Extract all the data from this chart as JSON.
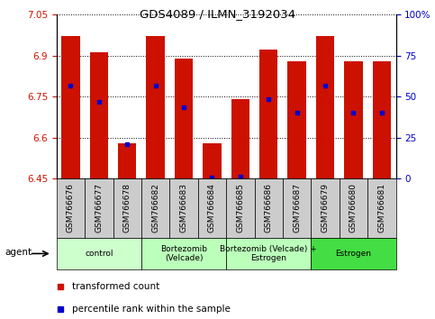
{
  "title": "GDS4089 / ILMN_3192034",
  "samples": [
    "GSM766676",
    "GSM766677",
    "GSM766678",
    "GSM766682",
    "GSM766683",
    "GSM766684",
    "GSM766685",
    "GSM766686",
    "GSM766687",
    "GSM766679",
    "GSM766680",
    "GSM766681"
  ],
  "bar_tops": [
    6.97,
    6.91,
    6.58,
    6.97,
    6.89,
    6.58,
    6.74,
    6.92,
    6.88,
    6.97,
    6.88,
    6.88
  ],
  "bar_bottoms": [
    6.45,
    6.45,
    6.45,
    6.45,
    6.45,
    6.45,
    6.45,
    6.45,
    6.45,
    6.45,
    6.45,
    6.45
  ],
  "percentile_values": [
    6.79,
    6.73,
    6.575,
    6.79,
    6.71,
    6.455,
    6.458,
    6.74,
    6.69,
    6.79,
    6.69,
    6.69
  ],
  "bar_color": "#CC1100",
  "dot_color": "#0000CC",
  "ylim": [
    6.45,
    7.05
  ],
  "yticks_left": [
    6.45,
    6.6,
    6.75,
    6.9,
    7.05
  ],
  "yticks_right": [
    0,
    25,
    50,
    75,
    100
  ],
  "groups": [
    {
      "label": "control",
      "start": 0,
      "end": 3,
      "color": "#CCFFCC"
    },
    {
      "label": "Bortezomib\n(Velcade)",
      "start": 3,
      "end": 6,
      "color": "#BBFFBB"
    },
    {
      "label": "Bortezomib (Velcade) +\nEstrogen",
      "start": 6,
      "end": 9,
      "color": "#BBFFBB"
    },
    {
      "label": "Estrogen",
      "start": 9,
      "end": 12,
      "color": "#44DD44"
    }
  ],
  "legend_items": [
    {
      "label": "transformed count",
      "color": "#CC1100"
    },
    {
      "label": "percentile rank within the sample",
      "color": "#0000CC"
    }
  ],
  "agent_label": "agent",
  "bar_width": 0.65,
  "sample_cell_color": "#CCCCCC",
  "plot_bg": "#FFFFFF"
}
